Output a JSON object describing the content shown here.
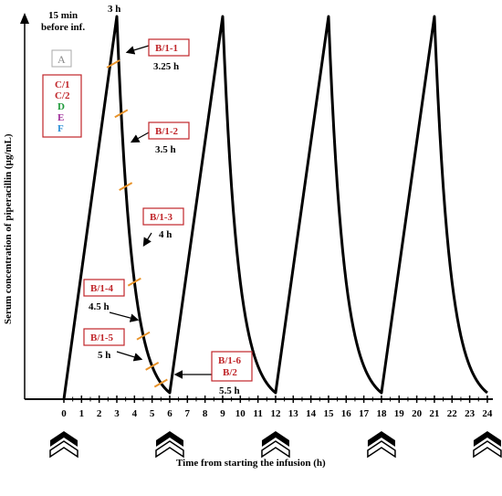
{
  "axes": {
    "x_title": "Time from starting the infusion (h)",
    "y_title": "Serum concentration of piperacillin (µg/mL)",
    "x_ticks": [
      "0",
      "1",
      "2",
      "3",
      "4",
      "5",
      "6",
      "7",
      "8",
      "9",
      "10",
      "11",
      "12",
      "13",
      "14",
      "15",
      "16",
      "17",
      "18",
      "19",
      "20",
      "21",
      "22",
      "23",
      "24"
    ]
  },
  "infusion_markers_h": [
    0,
    6,
    12,
    18,
    24
  ],
  "peak_label": "3 h",
  "before_label_line1": "15 min",
  "before_label_line2": "before inf.",
  "box_a": "A",
  "legend_box": {
    "items": [
      {
        "text": "C/1",
        "color": "#c0262a"
      },
      {
        "text": "C/2",
        "color": "#c0262a"
      },
      {
        "text": "D",
        "color": "#1f9a3b"
      },
      {
        "text": "E",
        "color": "#a0309b"
      },
      {
        "text": "F",
        "color": "#2a8fd6"
      }
    ]
  },
  "sample_labels": [
    {
      "box": "B/1-1",
      "time": "3.25 h"
    },
    {
      "box": "B/1-2",
      "time": "3.5 h"
    },
    {
      "box": "B/1-3",
      "time": "4 h"
    },
    {
      "box": "B/1-4",
      "time": "4.5 h"
    },
    {
      "box": "B/1-5",
      "time": "5 h"
    },
    {
      "box_line1": "B/1-6",
      "box_line2": "B/2",
      "time": "5.5 h"
    }
  ],
  "colors": {
    "box_border": "#c0262a",
    "box_text": "#c0262a",
    "marker": "#e8932a",
    "curve": "#000000"
  }
}
